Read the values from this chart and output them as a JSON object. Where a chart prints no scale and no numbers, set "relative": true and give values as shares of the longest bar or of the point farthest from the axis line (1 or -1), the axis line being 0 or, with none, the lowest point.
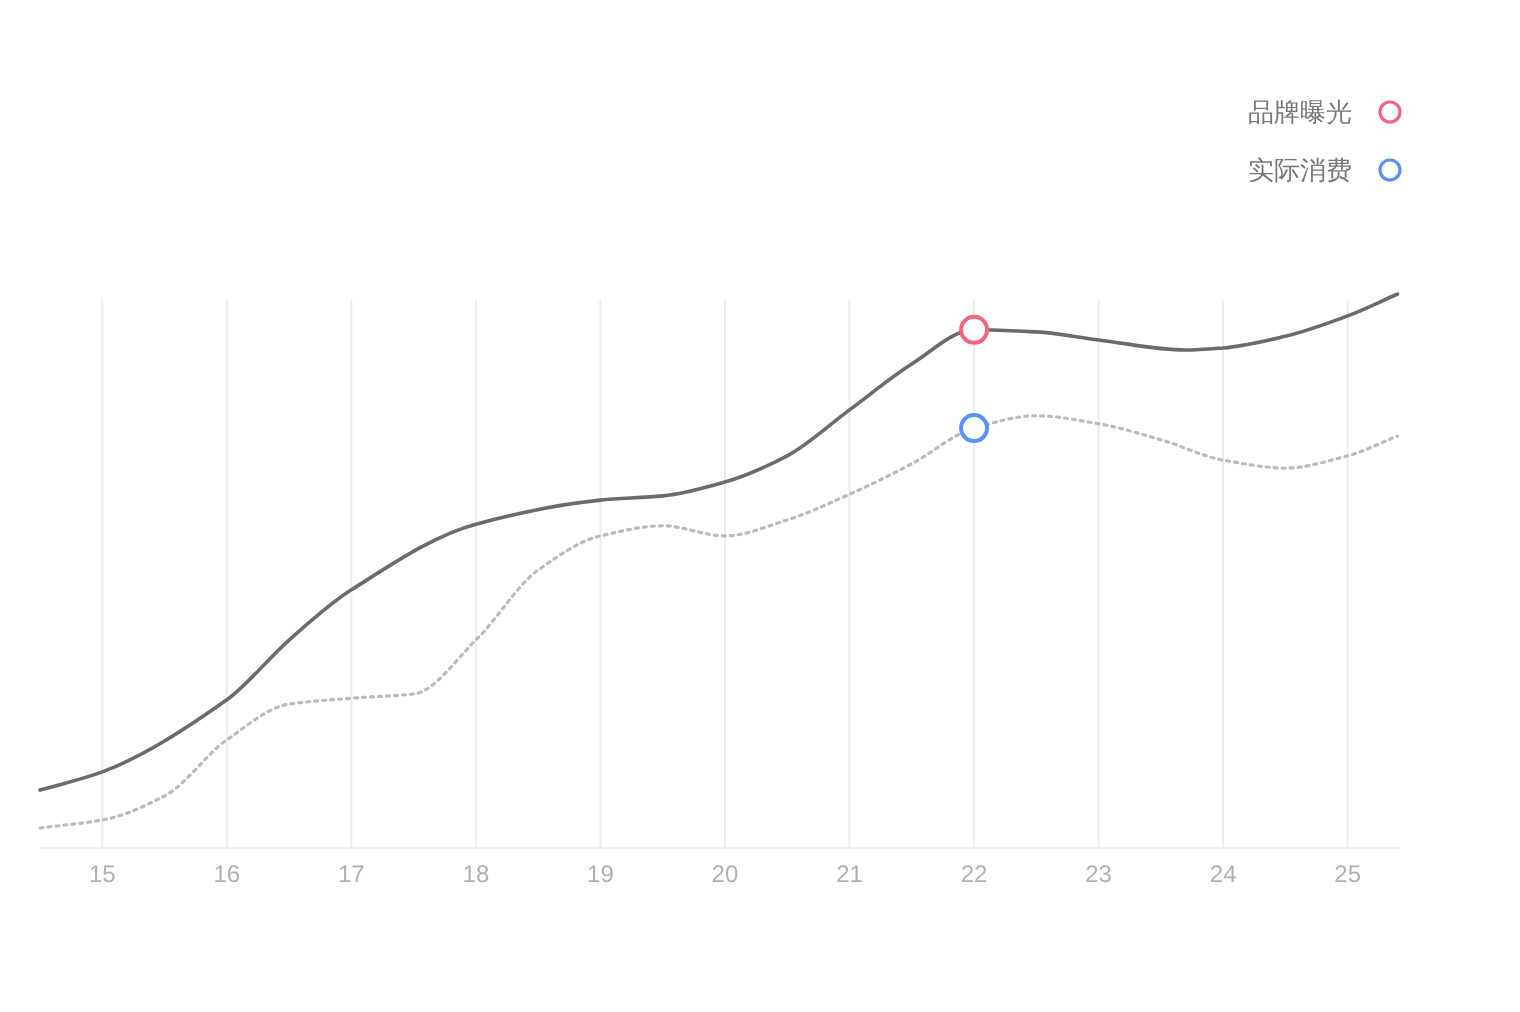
{
  "chart_data": {
    "type": "line",
    "relative": true,
    "xlim": [
      14.5,
      25.42
    ],
    "xticks": [
      15,
      16,
      17,
      18,
      19,
      20,
      21,
      22,
      23,
      24,
      25
    ],
    "grid": "x",
    "legend": "top right",
    "marker": "none",
    "series": [
      {
        "color": "#6b6b6b",
        "line_style": "solid",
        "x": [
          14.5,
          15,
          16,
          16.5,
          17,
          18,
          19,
          19.5,
          20,
          20.5,
          21,
          21.5,
          22,
          22.5,
          23,
          23.7,
          24,
          24.5,
          25,
          25.4
        ],
        "values": [
          0.071,
          0.105,
          0.24,
          0.352,
          0.446,
          0.569,
          0.614,
          0.622,
          0.648,
          0.697,
          0.783,
          0.869,
          0.933,
          0.929,
          0.914,
          0.895,
          0.899,
          0.921,
          0.959,
          1
        ]
      },
      {
        "color": "#bbbbbb",
        "line_style": "dotted",
        "x": [
          14.5,
          15,
          15.5,
          16,
          16.5,
          17,
          17.5,
          18,
          18.5,
          19,
          19.5,
          20,
          20.5,
          21,
          21.5,
          22,
          22.5,
          23,
          23.5,
          24,
          24.5,
          25,
          25.4
        ],
        "values": [
          0,
          0.015,
          0.06,
          0.165,
          0.232,
          0.243,
          0.251,
          0.352,
          0.483,
          0.547,
          0.566,
          0.547,
          0.577,
          0.625,
          0.682,
          0.749,
          0.772,
          0.757,
          0.727,
          0.689,
          0.674,
          0.697,
          0.734
        ]
      },
      {
        "type": "scatter",
        "name": "品牌曝光",
        "color": "#f4647d",
        "marker": "circle",
        "x": [
          22
        ],
        "values": [
          0.933
        ]
      },
      {
        "type": "scatter",
        "name": "实际消费",
        "color": "#5b8ff9",
        "marker": "circle",
        "x": [
          22
        ],
        "values": [
          0.749
        ]
      }
    ]
  }
}
